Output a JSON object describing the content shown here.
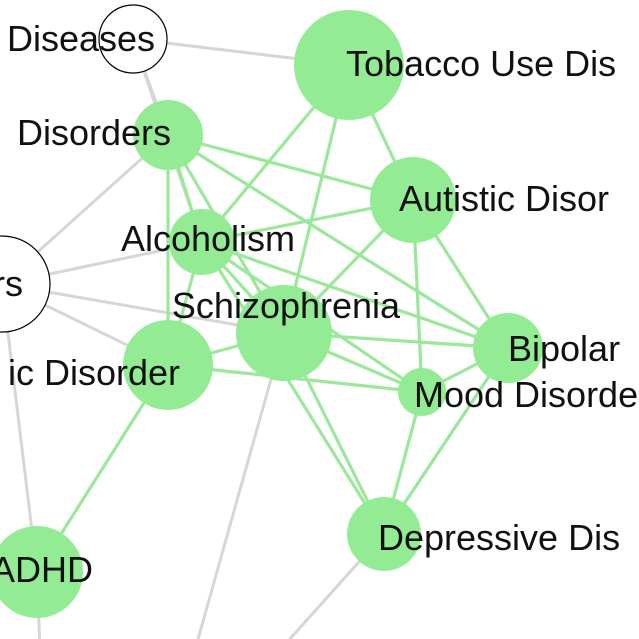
{
  "colors": {
    "highlight_node": "#93ec93",
    "highlight_edge": "#9be89b",
    "context_edge": "#d6d6d6",
    "context_node_fill": "#ffffff",
    "context_node_stroke": "#000000"
  },
  "nodes": [
    {
      "id": "diseases",
      "label": "Diseases",
      "highlighted": false
    },
    {
      "id": "disorders",
      "label": "Disorders",
      "highlighted": true
    },
    {
      "id": "rs",
      "label": "rs",
      "highlighted": false
    },
    {
      "id": "ic_disorder",
      "label": "ic Disorder",
      "highlighted": true
    },
    {
      "id": "adhd",
      "label": "ADHD",
      "highlighted": true
    },
    {
      "id": "tobacco",
      "label": "Tobacco Use Dis",
      "highlighted": true
    },
    {
      "id": "autistic",
      "label": "Autistic Disor",
      "highlighted": true
    },
    {
      "id": "alcoholism",
      "label": "Alcoholism",
      "highlighted": true
    },
    {
      "id": "schizophrenia",
      "label": "Schizophrenia",
      "highlighted": true
    },
    {
      "id": "bipolar",
      "label": "Bipolar",
      "highlighted": true
    },
    {
      "id": "mood",
      "label": "Mood Disorde",
      "highlighted": true
    },
    {
      "id": "depressive",
      "label": "Depressive Dis",
      "highlighted": true
    }
  ],
  "edges": [
    {
      "from": "tobacco",
      "to": "alcoholism",
      "highlighted": true
    },
    {
      "from": "tobacco",
      "to": "schizophrenia",
      "highlighted": true
    },
    {
      "from": "tobacco",
      "to": "autistic",
      "highlighted": true
    },
    {
      "from": "disorders",
      "to": "autistic",
      "highlighted": true
    },
    {
      "from": "disorders",
      "to": "alcoholism",
      "highlighted": true
    },
    {
      "from": "disorders",
      "to": "schizophrenia",
      "highlighted": true
    },
    {
      "from": "disorders",
      "to": "ic_disorder",
      "highlighted": true
    },
    {
      "from": "disorders",
      "to": "bipolar",
      "highlighted": true
    },
    {
      "from": "alcoholism",
      "to": "autistic",
      "highlighted": true
    },
    {
      "from": "alcoholism",
      "to": "schizophrenia",
      "highlighted": true
    },
    {
      "from": "alcoholism",
      "to": "bipolar",
      "highlighted": true
    },
    {
      "from": "alcoholism",
      "to": "mood",
      "highlighted": true
    },
    {
      "from": "alcoholism",
      "to": "depressive",
      "highlighted": true
    },
    {
      "from": "alcoholism",
      "to": "ic_disorder",
      "highlighted": true
    },
    {
      "from": "autistic",
      "to": "schizophrenia",
      "highlighted": true
    },
    {
      "from": "autistic",
      "to": "bipolar",
      "highlighted": true
    },
    {
      "from": "autistic",
      "to": "mood",
      "highlighted": true
    },
    {
      "from": "schizophrenia",
      "to": "bipolar",
      "highlighted": true
    },
    {
      "from": "schizophrenia",
      "to": "mood",
      "highlighted": true
    },
    {
      "from": "schizophrenia",
      "to": "depressive",
      "highlighted": true
    },
    {
      "from": "schizophrenia",
      "to": "ic_disorder",
      "highlighted": true
    },
    {
      "from": "ic_disorder",
      "to": "mood",
      "highlighted": true
    },
    {
      "from": "ic_disorder",
      "to": "adhd",
      "highlighted": true
    },
    {
      "from": "bipolar",
      "to": "depressive",
      "highlighted": true
    },
    {
      "from": "mood",
      "to": "depressive",
      "highlighted": true
    },
    {
      "from": "bipolar",
      "to": "mood",
      "highlighted": true
    },
    {
      "from": "diseases",
      "to": "tobacco",
      "highlighted": false
    },
    {
      "from": "diseases",
      "to": "disorders",
      "highlighted": false
    },
    {
      "from": "diseases",
      "to": "alcoholism",
      "highlighted": false
    },
    {
      "from": "rs",
      "to": "disorders",
      "highlighted": false
    },
    {
      "from": "rs",
      "to": "alcoholism",
      "highlighted": false
    },
    {
      "from": "rs",
      "to": "schizophrenia",
      "highlighted": false
    },
    {
      "from": "rs",
      "to": "ic_disorder",
      "highlighted": false
    },
    {
      "from": "rs",
      "to": "adhd",
      "highlighted": false
    },
    {
      "from": "schizophrenia",
      "to": "offscreen_a",
      "highlighted": false
    },
    {
      "from": "depressive",
      "to": "offscreen_b",
      "highlighted": false
    },
    {
      "from": "adhd",
      "to": "offscreen_c",
      "highlighted": false
    }
  ]
}
